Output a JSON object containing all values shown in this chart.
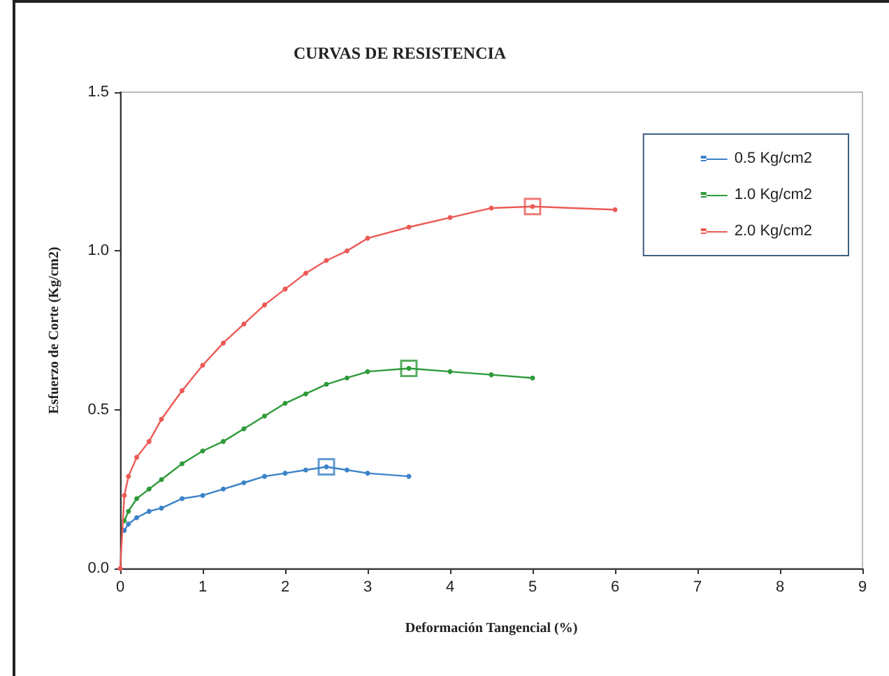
{
  "chart_data": {
    "type": "line",
    "title": "CURVAS DE RESISTENCIA",
    "xlabel": "Deformación Tangencial (%)",
    "ylabel": "Esfuerzo de Corte (Kg/cm2)",
    "xlim": [
      0,
      9
    ],
    "xticks": [
      0,
      1,
      2,
      3,
      4,
      5,
      6,
      7,
      8,
      9
    ],
    "ylim": [
      0,
      1.5
    ],
    "yticks": [
      {
        "value": 0,
        "label": "0.0"
      },
      {
        "value": 0.5,
        "label": "0.5"
      },
      {
        "value": 1,
        "label": "1.0"
      },
      {
        "value": 1.5,
        "label": "1.5"
      }
    ],
    "grid": false,
    "legend": "top right",
    "marker": "circle",
    "series": [
      {
        "name": "0.5 Kg/cm2",
        "color": "#3b82c8",
        "x": [
          0.05,
          0.1,
          0.2,
          0.35,
          0.5,
          0.75,
          1.0,
          1.25,
          1.5,
          1.75,
          2.0,
          2.25,
          2.5,
          2.75,
          3.0,
          3.5
        ],
        "values": [
          0.12,
          0.14,
          0.16,
          0.18,
          0.19,
          0.22,
          0.23,
          0.25,
          0.27,
          0.29,
          0.3,
          0.31,
          0.32,
          0.31,
          0.3,
          0.29
        ]
      },
      {
        "name": "1.0 Kg/cm2",
        "color": "#2e9a3a",
        "x": [
          0.05,
          0.1,
          0.2,
          0.35,
          0.5,
          0.75,
          1.0,
          1.25,
          1.5,
          1.75,
          2.0,
          2.25,
          2.5,
          2.75,
          3.0,
          3.5,
          4.0,
          4.5,
          5.0
        ],
        "values": [
          0.15,
          0.18,
          0.22,
          0.25,
          0.28,
          0.33,
          0.37,
          0.4,
          0.44,
          0.48,
          0.52,
          0.55,
          0.58,
          0.6,
          0.62,
          0.63,
          0.62,
          0.61,
          0.6
        ]
      },
      {
        "name": "2.0 Kg/cm2",
        "color": "#ec5a55",
        "x": [
          0,
          0.05,
          0.1,
          0.2,
          0.35,
          0.5,
          0.75,
          1.0,
          1.25,
          1.5,
          1.75,
          2.0,
          2.25,
          2.5,
          2.75,
          3.0,
          3.5,
          4.0,
          4.5,
          5.0,
          6.0
        ],
        "values": [
          0,
          0.23,
          0.29,
          0.35,
          0.4,
          0.47,
          0.56,
          0.64,
          0.71,
          0.77,
          0.83,
          0.88,
          0.93,
          0.97,
          1.0,
          1.04,
          1.075,
          1.105,
          1.135,
          1.14,
          1.13
        ]
      },
      {
        "type": "scatter",
        "marker": "square",
        "color": "#3b82c8",
        "x": [
          2.5
        ],
        "values": [
          0.32
        ]
      },
      {
        "type": "scatter",
        "marker": "square",
        "color": "#2e9a3a",
        "x": [
          3.5
        ],
        "values": [
          0.63
        ]
      },
      {
        "type": "scatter",
        "marker": "square",
        "color": "#ec5a55",
        "x": [
          5.0
        ],
        "values": [
          1.14
        ]
      }
    ]
  }
}
